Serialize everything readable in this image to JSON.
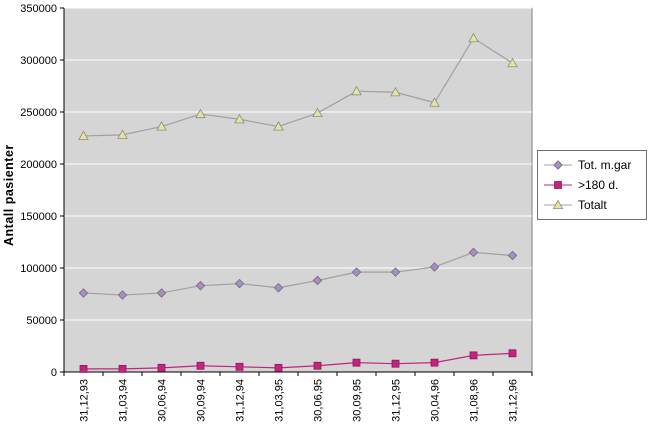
{
  "chart_data": {
    "type": "line",
    "title": "",
    "xlabel": "",
    "ylabel": "Antall  pasienter",
    "ylim": [
      0,
      350000
    ],
    "ytick_step": 50000,
    "grid": true,
    "legend_position": "right",
    "plot_bg": "#d5d5d5",
    "grid_color": "#ffffff",
    "categories": [
      "31,12,93",
      "31,03,94",
      "30,06,94",
      "30,09,94",
      "31,12,94",
      "31,03,95",
      "30,06,95",
      "30,09,95",
      "31,12,95",
      "30,04,96",
      "31,08,96",
      "31,12,96"
    ],
    "series": [
      {
        "name": "Tot. m.gar",
        "marker": "diamond",
        "marker_color": "#a98cc8",
        "marker_edge": "#6f6f6f",
        "line_color": "#a0a0a0",
        "values": [
          76000,
          74000,
          76000,
          83000,
          85000,
          81000,
          88000,
          96000,
          96000,
          101000,
          115000,
          112000
        ]
      },
      {
        "name": ">180 d.",
        "marker": "square",
        "marker_color": "#c2257d",
        "marker_edge": "#8f175c",
        "line_color": "#c2257d",
        "values": [
          3000,
          3000,
          4000,
          6000,
          5000,
          4000,
          6000,
          9000,
          8000,
          9000,
          16000,
          18000
        ]
      },
      {
        "name": "Totalt",
        "marker": "triangle",
        "marker_color": "#e6e49c",
        "marker_edge": "#8a8a8a",
        "line_color": "#a0a0a0",
        "values": [
          227000,
          228000,
          236000,
          248000,
          243000,
          236000,
          249000,
          270000,
          269000,
          259000,
          321000,
          297000
        ]
      }
    ]
  }
}
